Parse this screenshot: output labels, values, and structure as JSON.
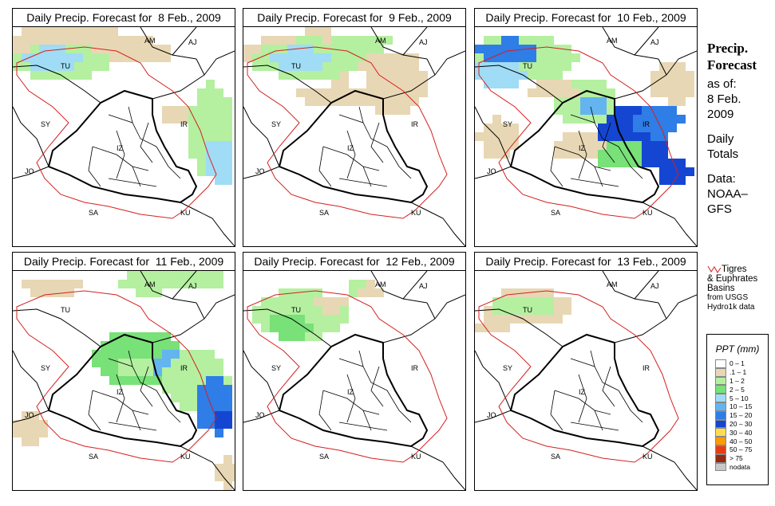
{
  "panels": [
    {
      "title": "Daily Precip. Forecast for  8 Feb., 2009",
      "day": 8
    },
    {
      "title": "Daily Precip. Forecast for  9 Feb., 2009",
      "day": 9
    },
    {
      "title": "Daily Precip. Forecast for  10 Feb., 2009",
      "day": 10
    },
    {
      "title": "Daily Precip. Forecast for  11 Feb., 2009",
      "day": 11
    },
    {
      "title": "Daily Precip. Forecast for  12 Feb., 2009",
      "day": 12
    },
    {
      "title": "Daily Precip. Forecast for  13 Feb., 2009",
      "day": 13
    }
  ],
  "country_labels": [
    "AM",
    "AJ",
    "TU",
    "SY",
    "IR",
    "IZ",
    "JO",
    "SA",
    "KU"
  ],
  "side": {
    "head1": "Precip.",
    "head2": "Forecast",
    "asof": "as of:",
    "date1": "8 Feb.",
    "date2": "2009",
    "daily1": "Daily",
    "daily2": "Totals",
    "data1": "Data:",
    "data2": "NOAA–",
    "data3": "GFS"
  },
  "basin_legend": {
    "line1": "Tigres",
    "line2": "& Euphrates",
    "line3": "Basins",
    "line4": "from USGS",
    "line5": "Hydro1k data",
    "line_color": "#d42020"
  },
  "ppt_legend": {
    "title": "PPT (mm)",
    "items": [
      {
        "label": "0 – 1",
        "color": "#ffffff"
      },
      {
        "label": ".1 – 1",
        "color": "#e8d7b4"
      },
      {
        "label": "1 – 2",
        "color": "#b4f0a0"
      },
      {
        "label": "2 – 5",
        "color": "#78e178"
      },
      {
        "label": "5 – 10",
        "color": "#a0dcf5"
      },
      {
        "label": "10 – 15",
        "color": "#64b4f0"
      },
      {
        "label": "15 – 20",
        "color": "#2f7de6"
      },
      {
        "label": "20 – 30",
        "color": "#1446d2"
      },
      {
        "label": "30 – 40",
        "color": "#ffdc50"
      },
      {
        "label": "40 – 50",
        "color": "#ff9b00"
      },
      {
        "label": "50 – 75",
        "color": "#e63c14"
      },
      {
        "label": "> 75",
        "color": "#962814"
      },
      {
        "label": "nodata",
        "color": "#c8c8c8"
      }
    ]
  }
}
